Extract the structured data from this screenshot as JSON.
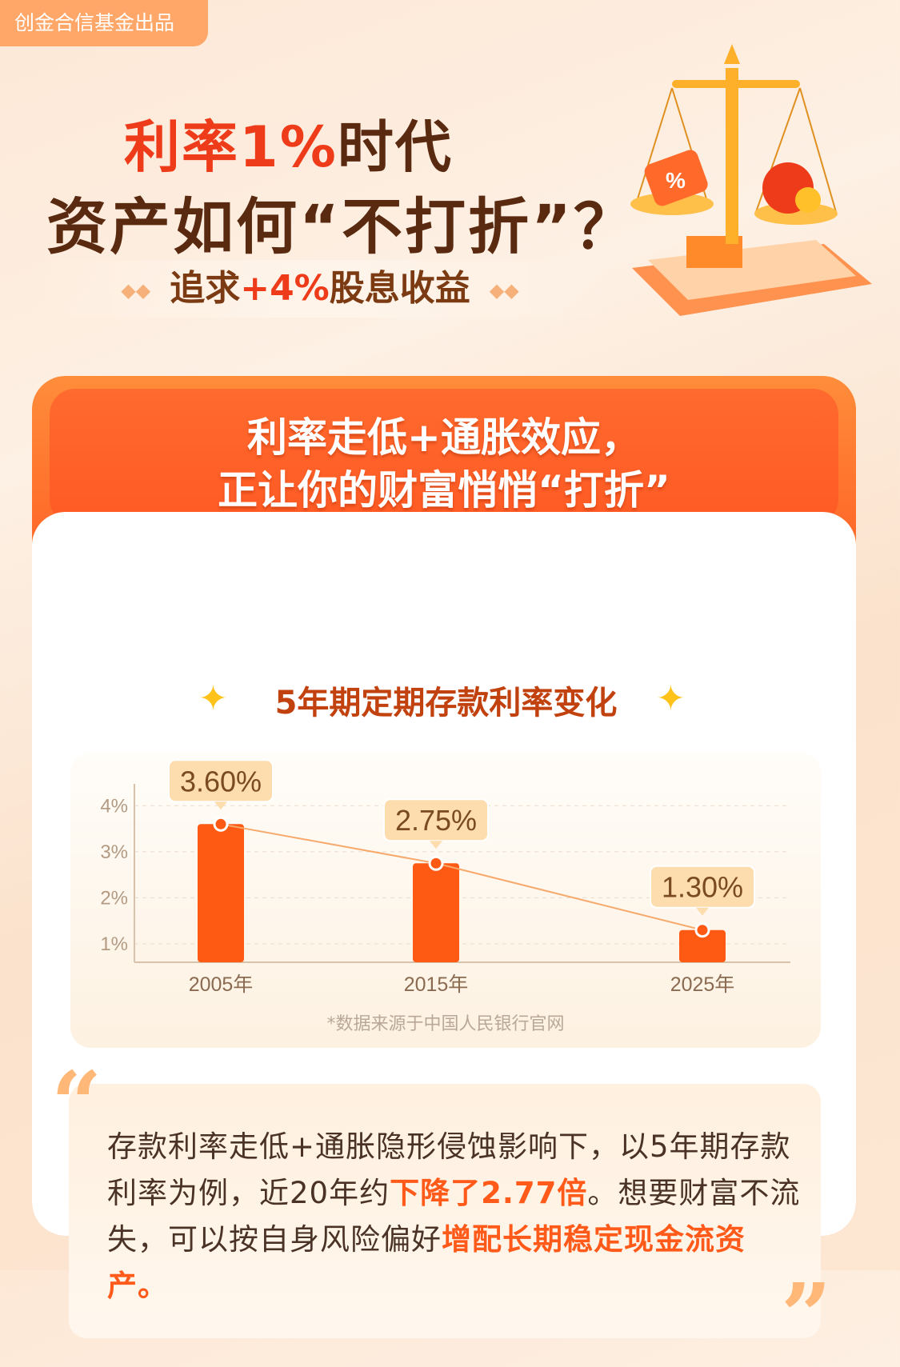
{
  "badge": "创金合信基金出品",
  "title": {
    "line1_a": "利率",
    "line1_b": "1%",
    "line1_c": "时代",
    "line2": "资产如何“不打折”？"
  },
  "subtitle": {
    "a": "追求",
    "b": "+4%",
    "c": "股息收益"
  },
  "section_heading": {
    "line1": "利率走低+通胀效应，",
    "line2": "正让你的财富悄悄“打折”"
  },
  "chart_data": {
    "type": "bar",
    "title": "5年期定期存款利率变化",
    "categories": [
      "2005年",
      "2015年",
      "2025年"
    ],
    "values": [
      3.6,
      2.75,
      1.3
    ],
    "data_labels": [
      "3.60%",
      "2.75%",
      "1.30%"
    ],
    "yticks": [
      "1%",
      "2%",
      "3%",
      "4%"
    ],
    "ylim": [
      0.6,
      4.3
    ],
    "grid": true,
    "overlay_line": true,
    "bar_color": "#ff5a14",
    "line_color": "#f7a86b"
  },
  "source_note": "*数据来源于中国人民银行官网",
  "quote": {
    "p1": "存款利率走低+通胀隐形侵蚀影响下，以5年期存款利率为例，近20年约",
    "h1": "下降了2.77倍",
    "p2": "。想要财富不流失，可以按自身风险偏好",
    "h2": "增配长期稳定现金流资产",
    "p3": "。"
  },
  "colors": {
    "accent": "#ff5a1a",
    "title_brown": "#5a2a10",
    "title_red": "#ee3b1a"
  }
}
